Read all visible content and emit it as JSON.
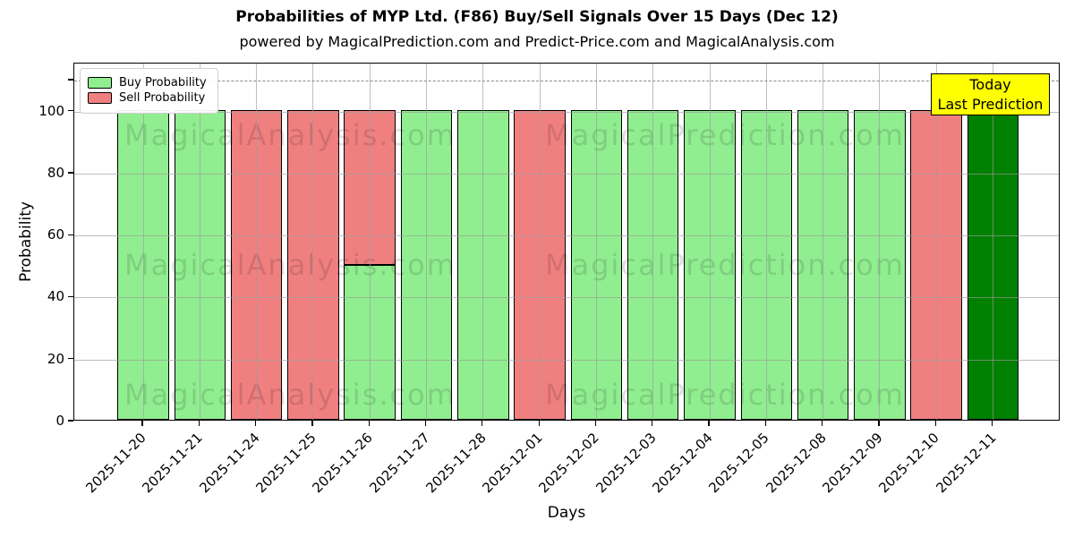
{
  "title": "Probabilities of MYP Ltd. (F86) Buy/Sell Signals Over 15 Days (Dec 12)",
  "subtitle": "powered by MagicalPrediction.com and Predict-Price.com and MagicalAnalysis.com",
  "annotation": {
    "line1": "Today",
    "line2": "Last Prediction",
    "bg_color": "#FFFF00"
  },
  "watermarks": {
    "texts": [
      "MagicalAnalysis.com",
      "MagicalPrediction.com"
    ]
  },
  "chart_data": {
    "type": "bar",
    "stacked": true,
    "title": "Probabilities of MYP Ltd. (F86) Buy/Sell Signals Over 15 Days (Dec 12)",
    "xlabel": "Days",
    "ylabel": "Probability",
    "categories": [
      "2025-11-20",
      "2025-11-21",
      "2025-11-24",
      "2025-11-25",
      "2025-11-26",
      "2025-11-27",
      "2025-11-28",
      "2025-12-01",
      "2025-12-02",
      "2025-12-03",
      "2025-12-04",
      "2025-12-05",
      "2025-12-08",
      "2025-12-09",
      "2025-12-10",
      "2025-12-11"
    ],
    "series": [
      {
        "name": "Buy Probability",
        "color": "#90EE90",
        "values": [
          100,
          100,
          0,
          0,
          50,
          100,
          100,
          0,
          100,
          100,
          100,
          100,
          100,
          100,
          0,
          0
        ]
      },
      {
        "name": "Sell Probability",
        "color": "#F08080",
        "values": [
          0,
          0,
          100,
          100,
          50,
          0,
          0,
          100,
          0,
          0,
          0,
          0,
          0,
          0,
          100,
          0
        ]
      },
      {
        "name": "Today Last Prediction",
        "color": "#008000",
        "values": [
          0,
          0,
          0,
          0,
          0,
          0,
          0,
          0,
          0,
          0,
          0,
          0,
          0,
          0,
          0,
          100
        ]
      }
    ],
    "yticks": [
      0,
      20,
      40,
      60,
      80,
      100
    ],
    "ylim": [
      0,
      115.5
    ],
    "dashed_line_y": 110,
    "grid": true,
    "legend_position": "upper left"
  }
}
